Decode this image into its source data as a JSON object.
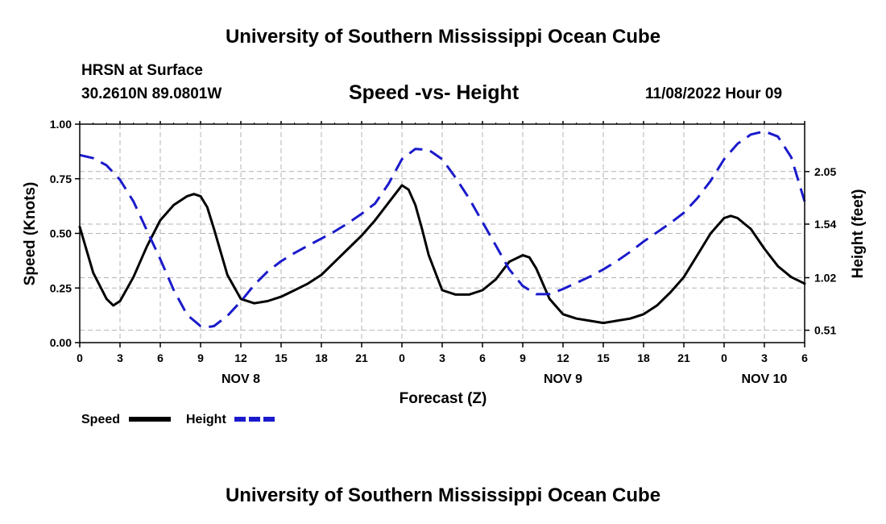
{
  "header": {
    "title": "University of Southern Mississippi Ocean Cube",
    "station": "HRSN at Surface",
    "coords": "30.2610N  89.0801W",
    "chart_title": "Speed -vs- Height",
    "datetime": "11/08/2022 Hour 09"
  },
  "footer": {
    "title": "University of Southern Mississippi Ocean Cube"
  },
  "chart_data": {
    "type": "line",
    "xlabel": "Forecast (Z)",
    "ylabel_left": "Speed (Knots)",
    "ylabel_right": "Height (feet)",
    "x_range": [
      0,
      54
    ],
    "x_ticks": [
      {
        "x": 0,
        "label": "0"
      },
      {
        "x": 3,
        "label": "3"
      },
      {
        "x": 6,
        "label": "6"
      },
      {
        "x": 9,
        "label": "9"
      },
      {
        "x": 12,
        "label": "12"
      },
      {
        "x": 15,
        "label": "15"
      },
      {
        "x": 18,
        "label": "18"
      },
      {
        "x": 21,
        "label": "21"
      },
      {
        "x": 24,
        "label": "0"
      },
      {
        "x": 27,
        "label": "3"
      },
      {
        "x": 30,
        "label": "6"
      },
      {
        "x": 33,
        "label": "9"
      },
      {
        "x": 36,
        "label": "12"
      },
      {
        "x": 39,
        "label": "15"
      },
      {
        "x": 42,
        "label": "18"
      },
      {
        "x": 45,
        "label": "21"
      },
      {
        "x": 48,
        "label": "0"
      },
      {
        "x": 51,
        "label": "3"
      },
      {
        "x": 54,
        "label": "6"
      }
    ],
    "day_labels": [
      {
        "x": 12,
        "label": "NOV 8"
      },
      {
        "x": 36,
        "label": "NOV 9"
      },
      {
        "x": 51,
        "label": "NOV 10"
      }
    ],
    "y_left": {
      "range": [
        0,
        1
      ],
      "ticks": [
        {
          "value": 0.0,
          "label": "0.00"
        },
        {
          "value": 0.25,
          "label": "0.25"
        },
        {
          "value": 0.5,
          "label": "0.50"
        },
        {
          "value": 0.75,
          "label": "0.75"
        },
        {
          "value": 1.0,
          "label": "1.00"
        }
      ]
    },
    "y_right": {
      "range": [
        0.39,
        2.51
      ],
      "ticks": [
        {
          "value": 0.51,
          "label": "0.51"
        },
        {
          "value": 1.02,
          "label": "1.02"
        },
        {
          "value": 1.54,
          "label": "1.54"
        },
        {
          "value": 2.05,
          "label": "2.05"
        }
      ]
    },
    "series": [
      {
        "name": "Speed",
        "axis": "left",
        "color": "#000000",
        "dash": "solid",
        "x": [
          0,
          1,
          2,
          2.5,
          3,
          4,
          5,
          6,
          7,
          8,
          8.5,
          9,
          9.5,
          10,
          11,
          12,
          13,
          14,
          15,
          16,
          17,
          18,
          19,
          20,
          21,
          22,
          23,
          24,
          24.5,
          25,
          25.5,
          26,
          27,
          28,
          29,
          30,
          31,
          32,
          33,
          33.5,
          34,
          35,
          36,
          37,
          38,
          39,
          40,
          41,
          42,
          43,
          44,
          45,
          46,
          47,
          48,
          48.5,
          49,
          50,
          51,
          52,
          53,
          54
        ],
        "values": [
          0.53,
          0.32,
          0.2,
          0.17,
          0.19,
          0.3,
          0.44,
          0.56,
          0.63,
          0.67,
          0.68,
          0.67,
          0.62,
          0.52,
          0.31,
          0.2,
          0.18,
          0.19,
          0.21,
          0.24,
          0.27,
          0.31,
          0.37,
          0.43,
          0.49,
          0.56,
          0.64,
          0.72,
          0.7,
          0.63,
          0.52,
          0.4,
          0.24,
          0.22,
          0.22,
          0.24,
          0.29,
          0.37,
          0.4,
          0.39,
          0.34,
          0.2,
          0.13,
          0.11,
          0.1,
          0.09,
          0.1,
          0.11,
          0.13,
          0.17,
          0.23,
          0.3,
          0.4,
          0.5,
          0.57,
          0.58,
          0.57,
          0.52,
          0.43,
          0.35,
          0.3,
          0.27
        ]
      },
      {
        "name": "Height",
        "axis": "right",
        "color": "#1a1acc",
        "dash": "dashed",
        "x": [
          0,
          1,
          2,
          3,
          4,
          5,
          6,
          7,
          8,
          9,
          9.5,
          10,
          11,
          12,
          13,
          14,
          15,
          16,
          17,
          18,
          19,
          20,
          21,
          22,
          23,
          24,
          25,
          26,
          27,
          28,
          29,
          30,
          31,
          32,
          33,
          34,
          35,
          36,
          37,
          38,
          39,
          40,
          41,
          42,
          43,
          44,
          45,
          46,
          47,
          48,
          49,
          50,
          51,
          52,
          53,
          54
        ],
        "values": [
          2.21,
          2.18,
          2.11,
          1.97,
          1.76,
          1.48,
          1.2,
          0.9,
          0.66,
          0.55,
          0.54,
          0.55,
          0.65,
          0.79,
          0.95,
          1.08,
          1.18,
          1.26,
          1.33,
          1.4,
          1.47,
          1.55,
          1.64,
          1.74,
          1.93,
          2.17,
          2.27,
          2.26,
          2.17,
          1.99,
          1.79,
          1.56,
          1.33,
          1.1,
          0.94,
          0.86,
          0.86,
          0.91,
          0.97,
          1.03,
          1.1,
          1.18,
          1.27,
          1.37,
          1.46,
          1.55,
          1.65,
          1.79,
          1.96,
          2.17,
          2.32,
          2.41,
          2.44,
          2.39,
          2.19,
          1.76
        ]
      }
    ],
    "legend": [
      {
        "label": "Speed",
        "color": "#000000",
        "dash": "solid"
      },
      {
        "label": "Height",
        "color": "#1a1acc",
        "dash": "dashed"
      }
    ]
  }
}
